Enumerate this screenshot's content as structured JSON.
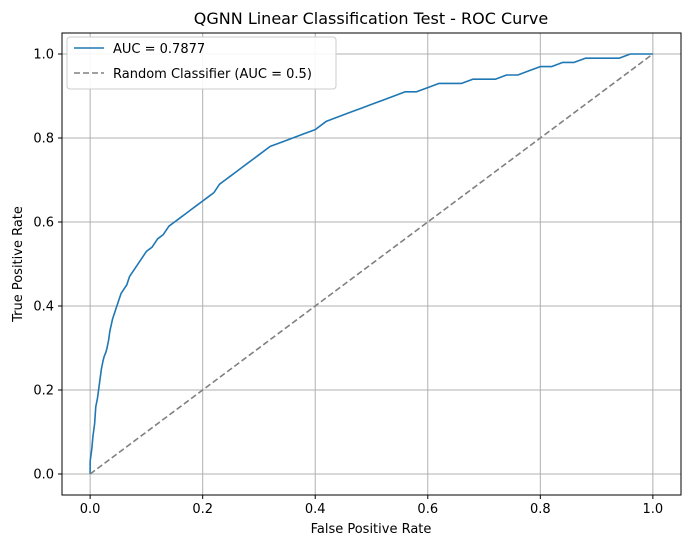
{
  "chart_data": {
    "type": "line",
    "title": "QGNN Linear Classification Test - ROC Curve",
    "xlabel": "False Positive Rate",
    "ylabel": "True Positive Rate",
    "xlim": [
      -0.05,
      1.05
    ],
    "ylim": [
      -0.05,
      1.05
    ],
    "xticks": [
      0.0,
      0.2,
      0.4,
      0.6,
      0.8,
      1.0
    ],
    "yticks": [
      0.0,
      0.2,
      0.4,
      0.6,
      0.8,
      1.0
    ],
    "xtick_labels": [
      "0.0",
      "0.2",
      "0.4",
      "0.6",
      "0.8",
      "1.0"
    ],
    "ytick_labels": [
      "0.0",
      "0.2",
      "0.4",
      "0.6",
      "0.8",
      "1.0"
    ],
    "grid": true,
    "legend_position": "top-left",
    "series": [
      {
        "name": "AUC = 0.7877",
        "color": "#1f77b4",
        "style": "solid",
        "x": [
          0.0,
          0.0,
          0.003,
          0.005,
          0.008,
          0.01,
          0.013,
          0.015,
          0.018,
          0.02,
          0.023,
          0.025,
          0.028,
          0.03,
          0.033,
          0.035,
          0.04,
          0.045,
          0.05,
          0.055,
          0.06,
          0.065,
          0.07,
          0.08,
          0.09,
          0.1,
          0.11,
          0.12,
          0.13,
          0.14,
          0.15,
          0.16,
          0.17,
          0.18,
          0.19,
          0.2,
          0.21,
          0.22,
          0.23,
          0.24,
          0.25,
          0.26,
          0.27,
          0.28,
          0.29,
          0.3,
          0.32,
          0.34,
          0.36,
          0.38,
          0.4,
          0.42,
          0.44,
          0.46,
          0.48,
          0.5,
          0.52,
          0.54,
          0.56,
          0.58,
          0.6,
          0.62,
          0.64,
          0.66,
          0.68,
          0.7,
          0.72,
          0.74,
          0.76,
          0.78,
          0.8,
          0.82,
          0.84,
          0.86,
          0.88,
          0.9,
          0.92,
          0.94,
          0.96,
          0.98,
          1.0
        ],
        "y": [
          0.0,
          0.03,
          0.06,
          0.09,
          0.12,
          0.16,
          0.18,
          0.2,
          0.23,
          0.25,
          0.27,
          0.28,
          0.29,
          0.3,
          0.32,
          0.34,
          0.37,
          0.39,
          0.41,
          0.43,
          0.44,
          0.45,
          0.47,
          0.49,
          0.51,
          0.53,
          0.54,
          0.56,
          0.57,
          0.59,
          0.6,
          0.61,
          0.62,
          0.63,
          0.64,
          0.65,
          0.66,
          0.67,
          0.69,
          0.7,
          0.71,
          0.72,
          0.73,
          0.74,
          0.75,
          0.76,
          0.78,
          0.79,
          0.8,
          0.81,
          0.82,
          0.84,
          0.85,
          0.86,
          0.87,
          0.88,
          0.89,
          0.9,
          0.91,
          0.91,
          0.92,
          0.93,
          0.93,
          0.93,
          0.94,
          0.94,
          0.94,
          0.95,
          0.95,
          0.96,
          0.97,
          0.97,
          0.98,
          0.98,
          0.99,
          0.99,
          0.99,
          0.99,
          1.0,
          1.0,
          1.0
        ]
      },
      {
        "name": "Random Classifier (AUC = 0.5)",
        "color": "#808080",
        "style": "dashed",
        "x": [
          0.0,
          1.0
        ],
        "y": [
          0.0,
          1.0
        ]
      }
    ]
  }
}
